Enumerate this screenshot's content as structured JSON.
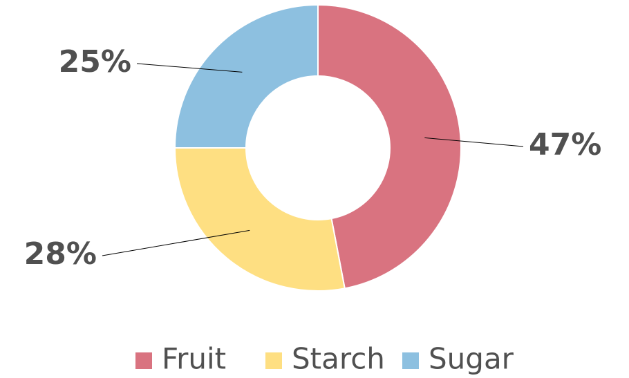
{
  "chart_data": {
    "type": "donut",
    "categories": [
      "Fruit",
      "Starch",
      "Sugar"
    ],
    "values": [
      47,
      28,
      25
    ],
    "value_labels": [
      "47%",
      "28%",
      "25%"
    ],
    "colors": [
      "#d97380",
      "#fedf82",
      "#8dc0e0"
    ],
    "legend": "bottom"
  }
}
